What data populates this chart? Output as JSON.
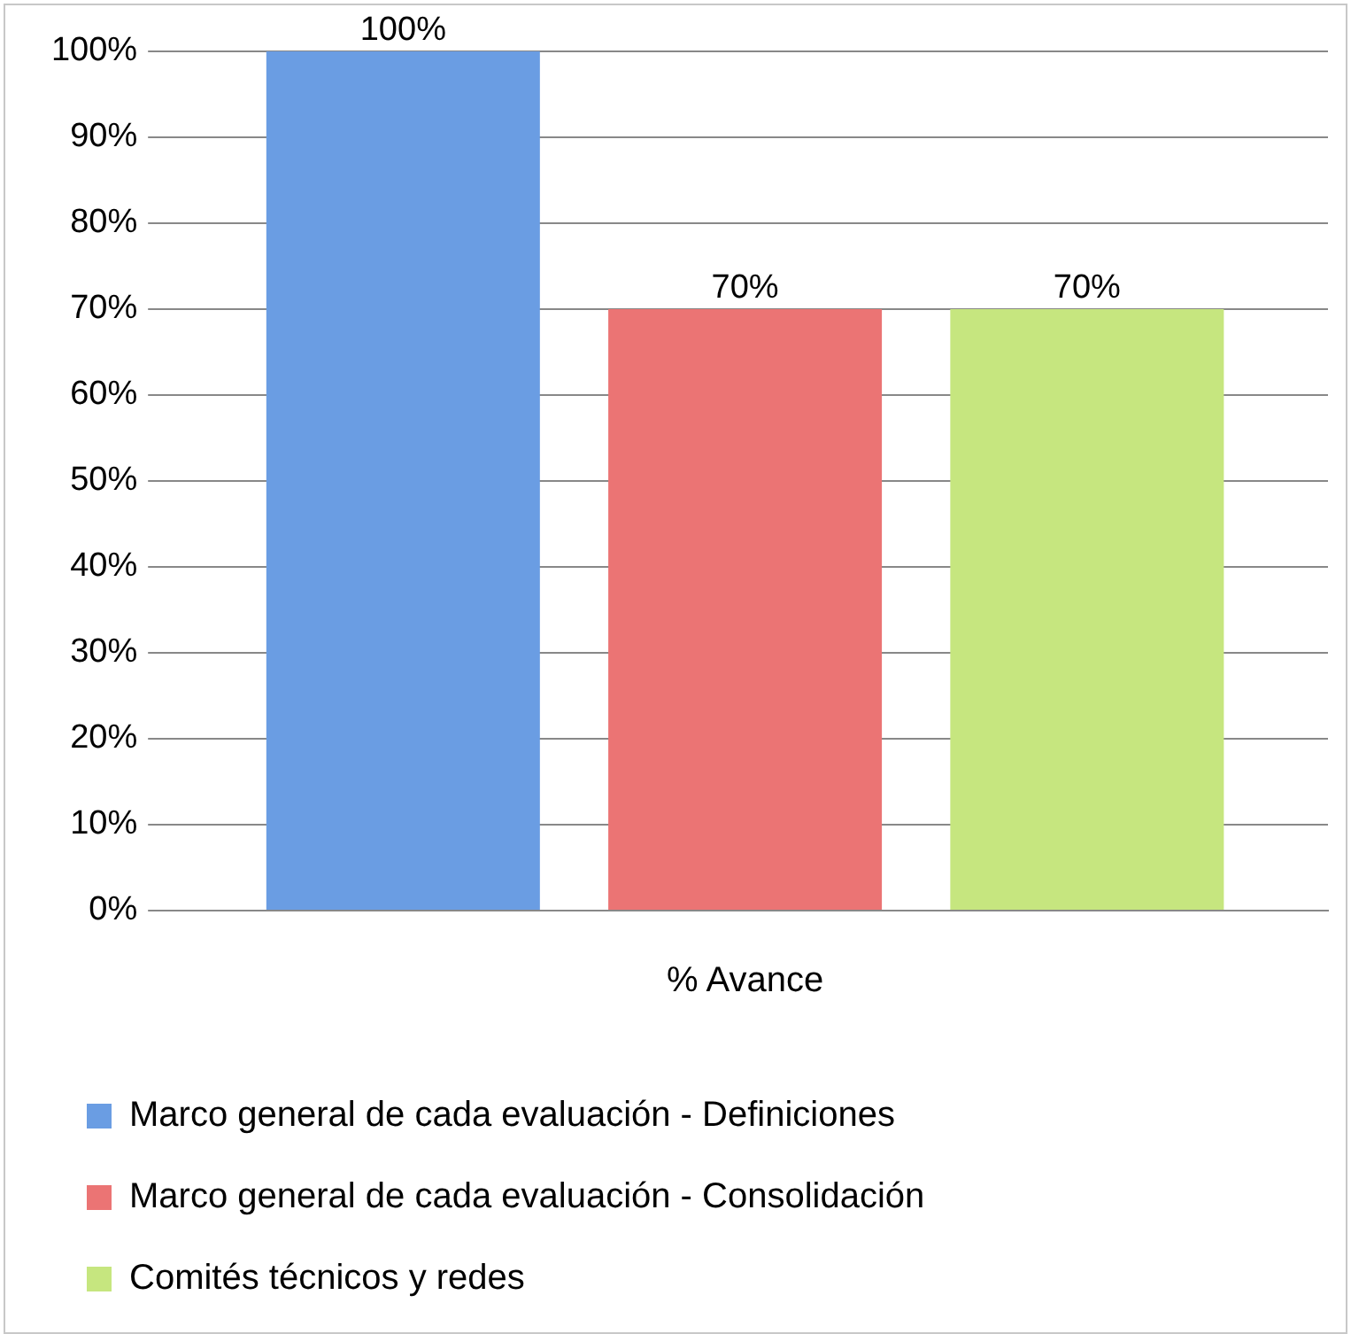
{
  "chart_data": {
    "type": "bar",
    "categories": [
      "% Avance"
    ],
    "series": [
      {
        "name": "Marco general de cada evaluación - Definiciones",
        "color": "#6a9de3",
        "values": [
          100
        ],
        "value_labels": [
          "100%"
        ]
      },
      {
        "name": "Marco general de cada evaluación - Consolidación",
        "color": "#eb7474",
        "values": [
          70
        ],
        "value_labels": [
          "70%"
        ]
      },
      {
        "name": "Comités técnicos y redes",
        "color": "#c6e67f",
        "values": [
          70
        ],
        "value_labels": [
          "70%"
        ]
      }
    ],
    "ylim": [
      0,
      100
    ],
    "yticks": [
      {
        "value": 0,
        "label": "0%"
      },
      {
        "value": 10,
        "label": "10%"
      },
      {
        "value": 20,
        "label": "20%"
      },
      {
        "value": 30,
        "label": "30%"
      },
      {
        "value": 40,
        "label": "40%"
      },
      {
        "value": 50,
        "label": "50%"
      },
      {
        "value": 60,
        "label": "60%"
      },
      {
        "value": 70,
        "label": "70%"
      },
      {
        "value": 80,
        "label": "80%"
      },
      {
        "value": 90,
        "label": "90%"
      },
      {
        "value": 100,
        "label": "100%"
      }
    ],
    "grid": "y",
    "legend": "bottom"
  }
}
